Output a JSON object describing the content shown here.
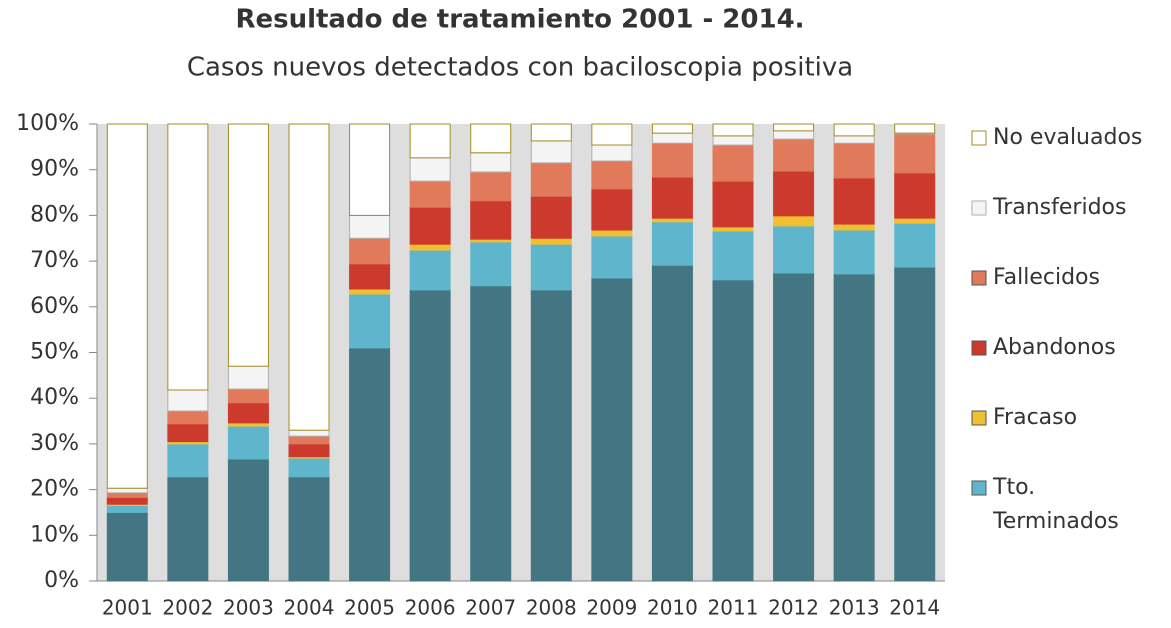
{
  "chart_data": {
    "type": "stacked_bar",
    "title": "Resultado de tratamiento 2001 - 2014.",
    "subtitle": "Casos nuevos detectados con baciloscopia positiva",
    "categories": [
      "2001",
      "2002",
      "2003",
      "2004",
      "2005",
      "2006",
      "2007",
      "2008",
      "2009",
      "2010",
      "2011",
      "2012",
      "2013",
      "2014"
    ],
    "series": [
      {
        "color": "#437682",
        "edgecolor": "#437682",
        "values": [
          15,
          22.8,
          26.7,
          22.8,
          51,
          63.7,
          64.6,
          63.7,
          66.3,
          69.1,
          65.9,
          67.4,
          67.2,
          68.7
        ]
      },
      {
        "name": "Tto. Terminados",
        "color": "#5fb6cc",
        "edgecolor": "#5fb6cc",
        "values": [
          1.5,
          7.2,
          7.2,
          4.1,
          11.8,
          8.7,
          9.6,
          10,
          9.2,
          9.5,
          10.7,
          10.3,
          9.6,
          9.6
        ]
      },
      {
        "name": "Fracaso",
        "color": "#f0c030",
        "edgecolor": "#f0c030",
        "values": [
          0.3,
          0.5,
          0.7,
          0.3,
          1.1,
          1.3,
          0.6,
          1.3,
          1.3,
          0.8,
          0.9,
          2.2,
          1.3,
          1.1
        ]
      },
      {
        "name": "Abandonos",
        "color": "#cc3a2e",
        "edgecolor": "#cc3a2e",
        "values": [
          1.5,
          3.9,
          4.4,
          2.8,
          5.5,
          8.1,
          8.4,
          9.2,
          9,
          9,
          10,
          9.8,
          10.1,
          9.9
        ]
      },
      {
        "name": "Fallecidos",
        "color": "#e07a5a",
        "edgecolor": "#e07a5a",
        "values": [
          1,
          2.8,
          3,
          1.7,
          5.6,
          5.7,
          6.3,
          7.3,
          6.1,
          7.4,
          7.9,
          7,
          7.6,
          8.5
        ]
      },
      {
        "name": "Transferidos",
        "color": "#f4f4f4",
        "edgecolor": "#b0b0b0",
        "values": [
          1,
          4.6,
          5,
          1.3,
          5,
          5.1,
          4.2,
          4.8,
          3.5,
          2.2,
          2,
          1.8,
          1.6,
          0.2
        ]
      },
      {
        "name": "No evaluados",
        "color": "#ffffff",
        "edgecolor": "#a58d20",
        "values": [
          79.7,
          58.2,
          53,
          67,
          20,
          7.4,
          6.3,
          3.7,
          4.6,
          2,
          2.6,
          1.5,
          2.6,
          2
        ]
      }
    ],
    "ylim": [
      0,
      100
    ],
    "yticks": [
      {
        "value": 0,
        "label": "0%"
      },
      {
        "value": 10,
        "label": "10%"
      },
      {
        "value": 20,
        "label": "20%"
      },
      {
        "value": 30,
        "label": "30%"
      },
      {
        "value": 40,
        "label": "40%"
      },
      {
        "value": 50,
        "label": "50%"
      },
      {
        "value": 60,
        "label": "60%"
      },
      {
        "value": 70,
        "label": "70%"
      },
      {
        "value": 80,
        "label": "80%"
      },
      {
        "value": 90,
        "label": "90%"
      },
      {
        "value": 100,
        "label": "100%"
      }
    ],
    "legend": "right"
  }
}
